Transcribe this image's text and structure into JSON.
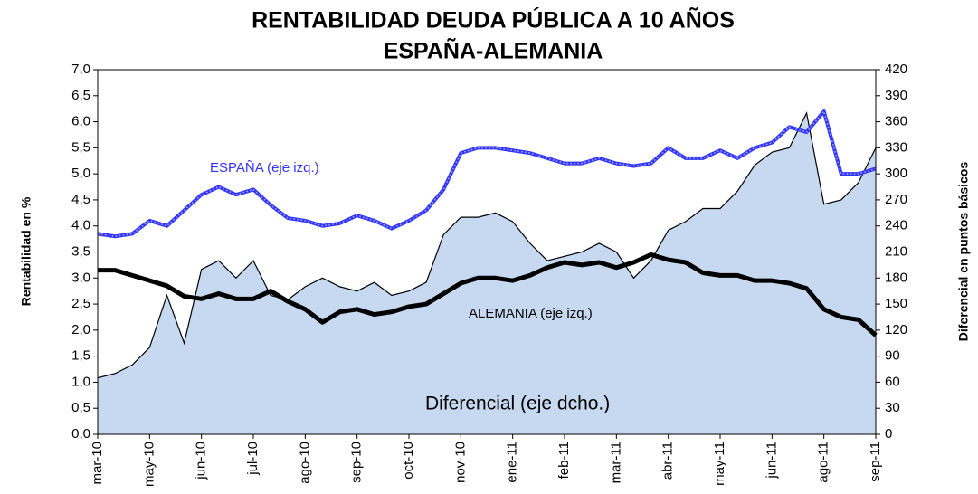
{
  "chart_data": {
    "type": "line",
    "title": [
      "RENTABILIDAD DEUDA PÚBLICA A 10 AÑOS",
      "ESPAÑA-ALEMANIA"
    ],
    "y_label": "Rentabilidad en %",
    "y2_label": "Diferencial en puntos básicos",
    "annotations": [
      "ESPAÑA (eje izq.)",
      "ALEMANIA (eje izq.)",
      "Diferencial (eje dcho.)"
    ],
    "categories": [
      "mar-10",
      null,
      null,
      "may-10",
      null,
      null,
      "jun-10",
      null,
      null,
      "jul-10",
      null,
      null,
      "ago-10",
      null,
      null,
      "sep-10",
      null,
      null,
      "oct-10",
      null,
      null,
      "nov-10",
      null,
      null,
      "ene-11",
      null,
      null,
      "feb-11",
      null,
      null,
      "mar-11",
      null,
      null,
      "abr-11",
      null,
      null,
      "may-11",
      null,
      null,
      "jun-11",
      null,
      null,
      "ago-11",
      null,
      null,
      "sep-11"
    ],
    "series": [
      {
        "name": "Diferencial",
        "color": "#c6d9f1",
        "axis": "y2",
        "kind": "area",
        "values": [
          65,
          70,
          80,
          100,
          160,
          105,
          190,
          200,
          180,
          200,
          160,
          155,
          170,
          180,
          170,
          165,
          175,
          160,
          165,
          175,
          230,
          250,
          250,
          255,
          245,
          220,
          200,
          205,
          210,
          220,
          210,
          180,
          200,
          235,
          245,
          260,
          260,
          280,
          310,
          325,
          330,
          370,
          265,
          270,
          290,
          330
        ]
      },
      {
        "name": "ESPAÑA",
        "color": "#3333ff",
        "values": [
          3.85,
          3.8,
          3.85,
          4.1,
          4.0,
          4.3,
          4.6,
          4.75,
          4.6,
          4.7,
          4.4,
          4.15,
          4.1,
          4.0,
          4.05,
          4.2,
          4.1,
          3.95,
          4.1,
          4.3,
          4.7,
          5.4,
          5.5,
          5.5,
          5.45,
          5.4,
          5.3,
          5.2,
          5.2,
          5.3,
          5.2,
          5.15,
          5.2,
          5.5,
          5.3,
          5.3,
          5.45,
          5.3,
          5.5,
          5.6,
          5.9,
          5.8,
          6.2,
          5.0,
          5.0,
          5.1
        ]
      },
      {
        "name": "ALEMANIA",
        "color": "#000000",
        "values": [
          3.15,
          3.15,
          3.05,
          2.95,
          2.85,
          2.65,
          2.6,
          2.7,
          2.6,
          2.6,
          2.75,
          2.55,
          2.4,
          2.15,
          2.35,
          2.4,
          2.3,
          2.35,
          2.45,
          2.5,
          2.7,
          2.9,
          3.0,
          3.0,
          2.95,
          3.05,
          3.2,
          3.3,
          3.25,
          3.3,
          3.2,
          3.3,
          3.45,
          3.35,
          3.3,
          3.1,
          3.05,
          3.05,
          2.95,
          2.95,
          2.9,
          2.8,
          2.4,
          2.25,
          2.2,
          1.9
        ]
      }
    ],
    "ylim": [
      0,
      7
    ],
    "yticks": [
      {
        "value": 0,
        "label": "0,0"
      },
      {
        "value": 0.5,
        "label": "0,5"
      },
      {
        "value": 1,
        "label": "1,0"
      },
      {
        "value": 1.5,
        "label": "1,5"
      },
      {
        "value": 2,
        "label": "2,0"
      },
      {
        "value": 2.5,
        "label": "2,5"
      },
      {
        "value": 3,
        "label": "3,0"
      },
      {
        "value": 3.5,
        "label": "3,5"
      },
      {
        "value": 4,
        "label": "4,0"
      },
      {
        "value": 4.5,
        "label": "4,5"
      },
      {
        "value": 5,
        "label": "5,0"
      },
      {
        "value": 5.5,
        "label": "5,5"
      },
      {
        "value": 6,
        "label": "6,0"
      },
      {
        "value": 6.5,
        "label": "6,5"
      },
      {
        "value": 7,
        "label": "7,0"
      }
    ],
    "y2lim": [
      0,
      420
    ],
    "y2ticks": [
      0,
      30,
      60,
      90,
      120,
      150,
      180,
      210,
      240,
      270,
      300,
      330,
      360,
      390,
      420
    ],
    "grid": false
  }
}
